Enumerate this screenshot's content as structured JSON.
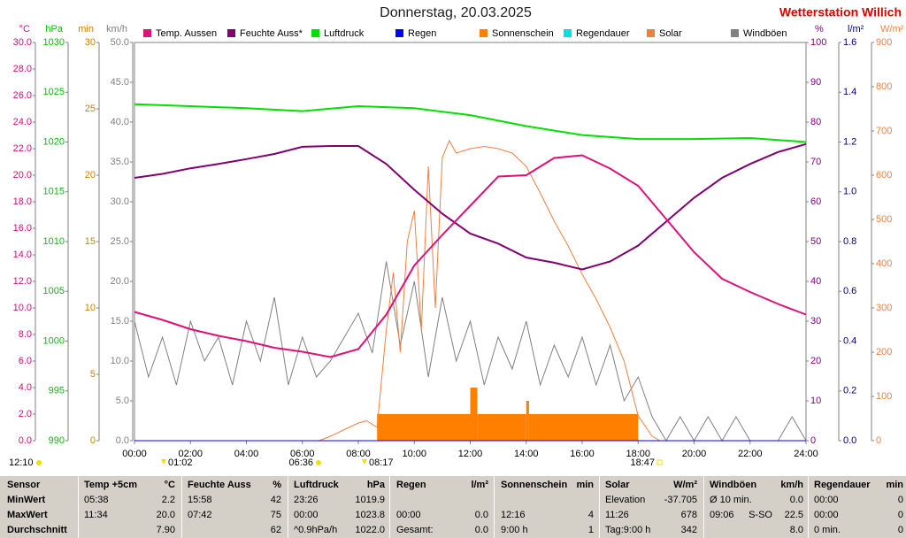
{
  "chart_data": {
    "type": "line",
    "title": "Donnerstag, 20.03.2025",
    "station": "Wetterstation Willich",
    "xlim": [
      0,
      24
    ],
    "xticks": [
      {
        "value": 0,
        "label": "00:00"
      },
      {
        "value": 2,
        "label": "02:00"
      },
      {
        "value": 4,
        "label": "04:00"
      },
      {
        "value": 6,
        "label": "06:00"
      },
      {
        "value": 8,
        "label": "08:00"
      },
      {
        "value": 10,
        "label": "10:00"
      },
      {
        "value": 12,
        "label": "12:00"
      },
      {
        "value": 14,
        "label": "14:00"
      },
      {
        "value": 16,
        "label": "16:00"
      },
      {
        "value": 18,
        "label": "18:00"
      },
      {
        "value": 20,
        "label": "20:00"
      },
      {
        "value": 22,
        "label": "22:00"
      },
      {
        "value": 24,
        "label": "24:00"
      }
    ],
    "axes": [
      {
        "unit": "°C",
        "side": "left",
        "color": "#d0107a",
        "lim": [
          0,
          30
        ],
        "ticks": [
          {
            "value": 0,
            "label": "0.0"
          },
          {
            "value": 2,
            "label": "2.0"
          },
          {
            "value": 4,
            "label": "4.0"
          },
          {
            "value": 6,
            "label": "6.0"
          },
          {
            "value": 8,
            "label": "8.0"
          },
          {
            "value": 10,
            "label": "10.0"
          },
          {
            "value": 12,
            "label": "12.0"
          },
          {
            "value": 14,
            "label": "14.0"
          },
          {
            "value": 16,
            "label": "16.0"
          },
          {
            "value": 18,
            "label": "18.0"
          },
          {
            "value": 20,
            "label": "20.0"
          },
          {
            "value": 22,
            "label": "22.0"
          },
          {
            "value": 24,
            "label": "24.0"
          },
          {
            "value": 26,
            "label": "26.0"
          },
          {
            "value": 28,
            "label": "28.0"
          },
          {
            "value": 30,
            "label": "30.0"
          }
        ]
      },
      {
        "unit": "hPa",
        "side": "left",
        "color": "#00c000",
        "lim": [
          990,
          1030
        ],
        "ticks": [
          990,
          995,
          1000,
          1005,
          1010,
          1015,
          1020,
          1025,
          1030
        ]
      },
      {
        "unit": "min",
        "side": "left",
        "color": "#d08000",
        "lim": [
          0,
          30
        ],
        "ticks": [
          0,
          5,
          10,
          15,
          20,
          25,
          30
        ]
      },
      {
        "unit": "km/h",
        "side": "left",
        "color": "#808080",
        "lim": [
          0,
          50
        ],
        "ticks": [
          {
            "value": 0,
            "label": "0.0"
          },
          {
            "value": 5,
            "label": "5.0"
          },
          {
            "value": 10,
            "label": "10.0"
          },
          {
            "value": 15,
            "label": "15.0"
          },
          {
            "value": 20,
            "label": "20.0"
          },
          {
            "value": 25,
            "label": "25.0"
          },
          {
            "value": 30,
            "label": "30.0"
          },
          {
            "value": 35,
            "label": "35.0"
          },
          {
            "value": 40,
            "label": "40.0"
          },
          {
            "value": 45,
            "label": "45.0"
          },
          {
            "value": 50,
            "label": "50.0"
          }
        ]
      },
      {
        "unit": "%",
        "side": "right",
        "color": "#800080",
        "lim": [
          0,
          100
        ],
        "ticks": [
          0,
          10,
          20,
          30,
          40,
          50,
          60,
          70,
          80,
          90,
          100
        ]
      },
      {
        "unit": "l/m²",
        "side": "right",
        "color": "#000080",
        "lim": [
          0,
          1.6
        ],
        "ticks": [
          {
            "value": 0,
            "label": "0.0"
          },
          {
            "value": 0.2,
            "label": "0.2"
          },
          {
            "value": 0.4,
            "label": "0.4"
          },
          {
            "value": 0.6,
            "label": "0.6"
          },
          {
            "value": 0.8,
            "label": "0.8"
          },
          {
            "value": 1.0,
            "label": "1.0"
          },
          {
            "value": 1.2,
            "label": "1.2"
          },
          {
            "value": 1.4,
            "label": "1.4"
          },
          {
            "value": 1.6,
            "label": "1.6"
          }
        ]
      },
      {
        "unit": "W/m²",
        "side": "right",
        "color": "#f08040",
        "lim": [
          0,
          900
        ],
        "ticks": [
          0,
          100,
          200,
          300,
          400,
          500,
          600,
          700,
          800,
          900
        ]
      }
    ],
    "series": [
      {
        "name": "Temp. Aussen",
        "color": "#e0107a",
        "axis": 0,
        "x": [
          0,
          1,
          2,
          3,
          4,
          5,
          6,
          7,
          8,
          9,
          10,
          11,
          12,
          13,
          14,
          15,
          16,
          17,
          18,
          19,
          20,
          21,
          22,
          23,
          24
        ],
        "values": [
          9.7,
          9.1,
          8.4,
          7.9,
          7.5,
          7.0,
          6.7,
          6.3,
          6.9,
          9.5,
          13.2,
          15.5,
          17.7,
          19.9,
          20.0,
          21.3,
          21.5,
          20.5,
          19.2,
          16.7,
          14.2,
          12.2,
          11.2,
          10.3,
          9.5
        ]
      },
      {
        "name": "Feuchte Auss*",
        "color": "#800070",
        "axis": 4,
        "x": [
          0,
          1,
          2,
          3,
          4,
          5,
          6,
          7,
          8,
          9,
          10,
          11,
          12,
          13,
          14,
          15,
          16,
          17,
          18,
          19,
          20,
          21,
          22,
          23,
          24
        ],
        "values": [
          66,
          67,
          68.4,
          69.5,
          70.7,
          72,
          73.8,
          74,
          74,
          69.5,
          63,
          57,
          52,
          49.5,
          46,
          44.7,
          43,
          45,
          49,
          55,
          61,
          66,
          69.5,
          72.5,
          74.5
        ]
      },
      {
        "name": "Luftdruck",
        "color": "#00e000",
        "axis": 1,
        "x": [
          0,
          2,
          4,
          6,
          8,
          10,
          12,
          14,
          16,
          18,
          20,
          22,
          24
        ],
        "values": [
          1023.8,
          1023.6,
          1023.4,
          1023.1,
          1023.6,
          1023.4,
          1022.7,
          1021.6,
          1020.7,
          1020.3,
          1020.3,
          1020.4,
          1020.0
        ]
      },
      {
        "name": "Regen",
        "color": "#0000ff",
        "axis": 5,
        "x": [
          0,
          24
        ],
        "values": [
          0,
          0
        ]
      },
      {
        "name": "Sonnenschein",
        "color": "#ff8000",
        "axis": 2,
        "kind": "bar",
        "bins": [
          8.67,
          12.0,
          12.25,
          14.0,
          14.1,
          18.0
        ],
        "values": [
          2,
          4,
          2,
          3,
          2
        ]
      },
      {
        "name": "Regendauer",
        "color": "#00e0e0",
        "axis": 2,
        "x": [
          0,
          24
        ],
        "values": [
          0,
          0
        ]
      },
      {
        "name": "Solar",
        "color": "#f08040",
        "axis": 6,
        "x": [
          6.6,
          7,
          7.5,
          8,
          8.3,
          8.67,
          9,
          9.25,
          9.5,
          9.75,
          10,
          10.25,
          10.5,
          10.75,
          11,
          11.25,
          11.5,
          12,
          12.5,
          13,
          13.5,
          14,
          14.5,
          15,
          15.5,
          16,
          16.5,
          17,
          17.5,
          18,
          18.5,
          18.78
        ],
        "values": [
          0,
          10,
          25,
          40,
          45,
          30,
          250,
          380,
          200,
          450,
          520,
          250,
          620,
          300,
          640,
          678,
          650,
          660,
          665,
          660,
          650,
          620,
          560,
          496,
          440,
          376,
          320,
          256,
          180,
          56,
          10,
          0
        ]
      },
      {
        "name": "Windböen",
        "color": "#808080",
        "axis": 3,
        "x": [
          0,
          0.5,
          1,
          1.5,
          2,
          2.5,
          3,
          3.5,
          4,
          4.5,
          5,
          5.5,
          6,
          6.5,
          7,
          7.5,
          8,
          8.5,
          9,
          9.5,
          10,
          10.5,
          11,
          11.5,
          12,
          12.5,
          13,
          13.5,
          14,
          14.5,
          15,
          15.5,
          16,
          16.5,
          17,
          17.5,
          18,
          18.5,
          19,
          19.5,
          20,
          20.5,
          21,
          21.5,
          22,
          22.5,
          23,
          23.5,
          24
        ],
        "values": [
          15,
          8,
          13,
          7,
          15,
          10,
          13,
          7,
          15,
          10,
          18,
          7,
          13,
          8,
          10,
          13,
          16,
          11,
          22.5,
          12,
          20,
          8,
          18,
          10,
          15,
          7,
          13,
          9,
          15,
          7,
          12,
          8,
          13,
          7,
          12,
          5,
          8,
          3,
          0,
          3,
          0,
          3,
          0,
          3,
          0,
          0,
          0,
          3,
          0
        ]
      }
    ],
    "markers": [
      {
        "label": "12:10"
      },
      {
        "label": "01:02"
      },
      {
        "label": "06:36"
      },
      {
        "label": "08:17"
      },
      {
        "label": "18:47"
      }
    ]
  },
  "table": {
    "headers": [
      {
        "left": "Sensor"
      },
      {
        "left": "Temp +5cm",
        "right": "°C"
      },
      {
        "left": "Feuchte Auss",
        "right": "%"
      },
      {
        "left": "Luftdruck",
        "right": "hPa"
      },
      {
        "left": "Regen",
        "right": "l/m²"
      },
      {
        "left": "Sonnenschein",
        "right": "min"
      },
      {
        "left": "Solar",
        "right": "W/m²"
      },
      {
        "left": "Windböen",
        "right": "km/h"
      },
      {
        "left": "Regendauer",
        "right": "min"
      }
    ],
    "rows": [
      {
        "label": "MinWert",
        "cells": [
          {
            "left": "05:38",
            "right": "2.2"
          },
          {
            "left": "15:58",
            "right": "42"
          },
          {
            "left": "23:26",
            "right": "1019.9"
          },
          {},
          {},
          {
            "left": "Elevation",
            "right": "-37.705"
          },
          {
            "left": "Ø 10 min.",
            "right": "0.0"
          },
          {
            "left": "00:00",
            "right": "0"
          }
        ]
      },
      {
        "label": "MaxWert",
        "cells": [
          {
            "left": "11:34",
            "right": "20.0"
          },
          {
            "left": "07:42",
            "right": "75"
          },
          {
            "left": "00:00",
            "right": "1023.8"
          },
          {
            "left": "00:00",
            "right": "0.0"
          },
          {
            "left": "12:16",
            "right": "4"
          },
          {
            "left": "11:26",
            "right": "678"
          },
          {
            "left": "09:06",
            "mid": "S-SO",
            "right": "22.5"
          },
          {
            "left": "00:00",
            "right": "0"
          }
        ]
      },
      {
        "label": "Durchschnitt",
        "cells": [
          {
            "right": "7.90"
          },
          {
            "right": "62"
          },
          {
            "left": "^0.9hPa/h",
            "right": "1022.0"
          },
          {
            "left": "Gesamt:",
            "right": "0.0"
          },
          {
            "left": "9:00 h",
            "right": "1"
          },
          {
            "left": "Tag:9:00 h",
            "right": "342"
          },
          {
            "right": "8.0"
          },
          {
            "left": "0 min.",
            "right": "0"
          }
        ]
      }
    ]
  }
}
